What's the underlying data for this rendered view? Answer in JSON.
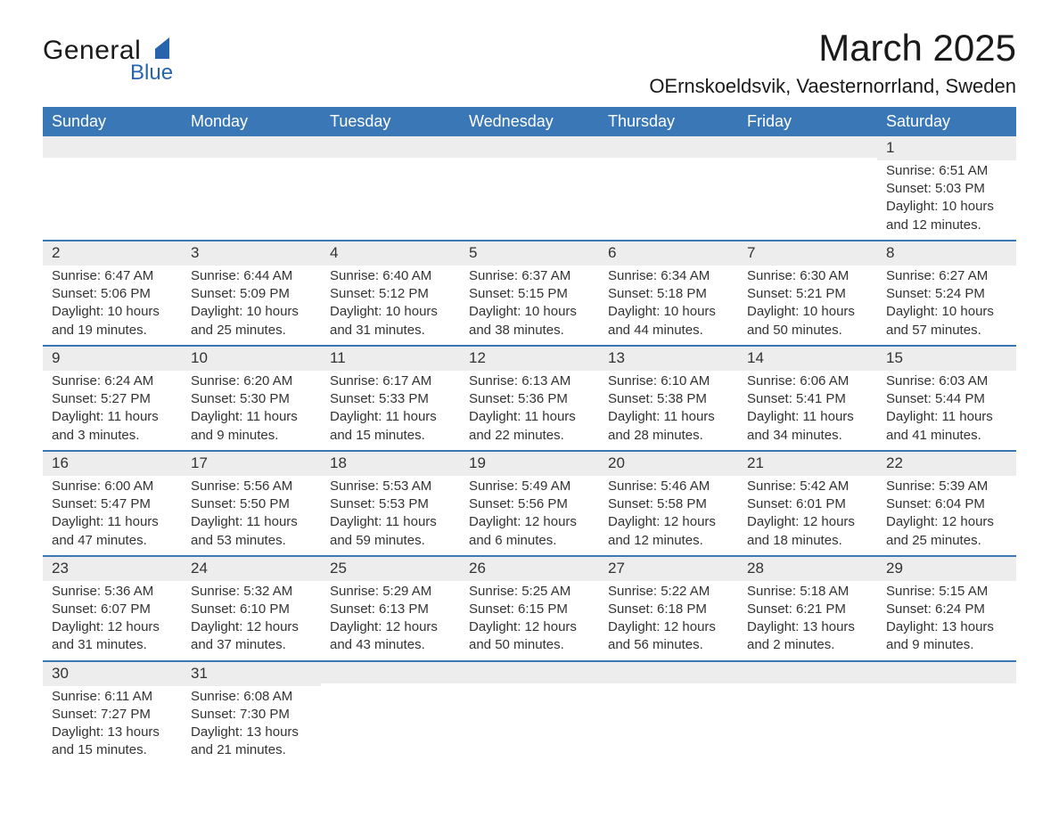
{
  "brand": {
    "name1": "General",
    "name2": "Blue",
    "accent": "#2864ad"
  },
  "title": "March 2025",
  "location": "OErnskoeldsvik, Vaesternorrland, Sweden",
  "colors": {
    "header_bg": "#3a77b6",
    "header_fg": "#ffffff",
    "row_border": "#3a77b6",
    "daynum_bg": "#ededed",
    "text": "#333333",
    "page_bg": "#ffffff"
  },
  "columns": [
    "Sunday",
    "Monday",
    "Tuesday",
    "Wednesday",
    "Thursday",
    "Friday",
    "Saturday"
  ],
  "weeks": [
    [
      null,
      null,
      null,
      null,
      null,
      null,
      {
        "n": "1",
        "sr": "6:51 AM",
        "ss": "5:03 PM",
        "dl": "10 hours and 12 minutes."
      }
    ],
    [
      {
        "n": "2",
        "sr": "6:47 AM",
        "ss": "5:06 PM",
        "dl": "10 hours and 19 minutes."
      },
      {
        "n": "3",
        "sr": "6:44 AM",
        "ss": "5:09 PM",
        "dl": "10 hours and 25 minutes."
      },
      {
        "n": "4",
        "sr": "6:40 AM",
        "ss": "5:12 PM",
        "dl": "10 hours and 31 minutes."
      },
      {
        "n": "5",
        "sr": "6:37 AM",
        "ss": "5:15 PM",
        "dl": "10 hours and 38 minutes."
      },
      {
        "n": "6",
        "sr": "6:34 AM",
        "ss": "5:18 PM",
        "dl": "10 hours and 44 minutes."
      },
      {
        "n": "7",
        "sr": "6:30 AM",
        "ss": "5:21 PM",
        "dl": "10 hours and 50 minutes."
      },
      {
        "n": "8",
        "sr": "6:27 AM",
        "ss": "5:24 PM",
        "dl": "10 hours and 57 minutes."
      }
    ],
    [
      {
        "n": "9",
        "sr": "6:24 AM",
        "ss": "5:27 PM",
        "dl": "11 hours and 3 minutes."
      },
      {
        "n": "10",
        "sr": "6:20 AM",
        "ss": "5:30 PM",
        "dl": "11 hours and 9 minutes."
      },
      {
        "n": "11",
        "sr": "6:17 AM",
        "ss": "5:33 PM",
        "dl": "11 hours and 15 minutes."
      },
      {
        "n": "12",
        "sr": "6:13 AM",
        "ss": "5:36 PM",
        "dl": "11 hours and 22 minutes."
      },
      {
        "n": "13",
        "sr": "6:10 AM",
        "ss": "5:38 PM",
        "dl": "11 hours and 28 minutes."
      },
      {
        "n": "14",
        "sr": "6:06 AM",
        "ss": "5:41 PM",
        "dl": "11 hours and 34 minutes."
      },
      {
        "n": "15",
        "sr": "6:03 AM",
        "ss": "5:44 PM",
        "dl": "11 hours and 41 minutes."
      }
    ],
    [
      {
        "n": "16",
        "sr": "6:00 AM",
        "ss": "5:47 PM",
        "dl": "11 hours and 47 minutes."
      },
      {
        "n": "17",
        "sr": "5:56 AM",
        "ss": "5:50 PM",
        "dl": "11 hours and 53 minutes."
      },
      {
        "n": "18",
        "sr": "5:53 AM",
        "ss": "5:53 PM",
        "dl": "11 hours and 59 minutes."
      },
      {
        "n": "19",
        "sr": "5:49 AM",
        "ss": "5:56 PM",
        "dl": "12 hours and 6 minutes."
      },
      {
        "n": "20",
        "sr": "5:46 AM",
        "ss": "5:58 PM",
        "dl": "12 hours and 12 minutes."
      },
      {
        "n": "21",
        "sr": "5:42 AM",
        "ss": "6:01 PM",
        "dl": "12 hours and 18 minutes."
      },
      {
        "n": "22",
        "sr": "5:39 AM",
        "ss": "6:04 PM",
        "dl": "12 hours and 25 minutes."
      }
    ],
    [
      {
        "n": "23",
        "sr": "5:36 AM",
        "ss": "6:07 PM",
        "dl": "12 hours and 31 minutes."
      },
      {
        "n": "24",
        "sr": "5:32 AM",
        "ss": "6:10 PM",
        "dl": "12 hours and 37 minutes."
      },
      {
        "n": "25",
        "sr": "5:29 AM",
        "ss": "6:13 PM",
        "dl": "12 hours and 43 minutes."
      },
      {
        "n": "26",
        "sr": "5:25 AM",
        "ss": "6:15 PM",
        "dl": "12 hours and 50 minutes."
      },
      {
        "n": "27",
        "sr": "5:22 AM",
        "ss": "6:18 PM",
        "dl": "12 hours and 56 minutes."
      },
      {
        "n": "28",
        "sr": "5:18 AM",
        "ss": "6:21 PM",
        "dl": "13 hours and 2 minutes."
      },
      {
        "n": "29",
        "sr": "5:15 AM",
        "ss": "6:24 PM",
        "dl": "13 hours and 9 minutes."
      }
    ],
    [
      {
        "n": "30",
        "sr": "6:11 AM",
        "ss": "7:27 PM",
        "dl": "13 hours and 15 minutes."
      },
      {
        "n": "31",
        "sr": "6:08 AM",
        "ss": "7:30 PM",
        "dl": "13 hours and 21 minutes."
      },
      null,
      null,
      null,
      null,
      null
    ]
  ],
  "labels": {
    "sunrise": "Sunrise: ",
    "sunset": "Sunset: ",
    "daylight": "Daylight: "
  }
}
